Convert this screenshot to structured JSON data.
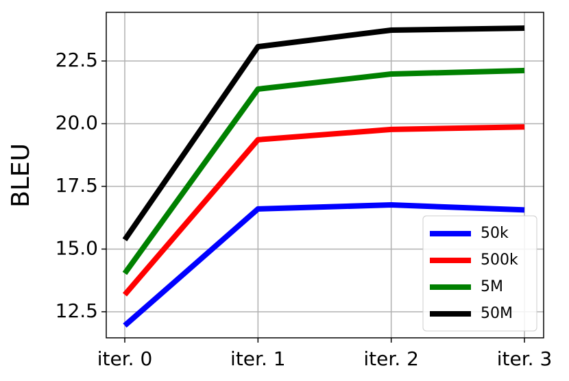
{
  "chart_data": {
    "type": "line",
    "y_label": "BLEU",
    "categories": [
      "iter. 0",
      "iter. 1",
      "iter. 2",
      "iter. 3"
    ],
    "series": [
      {
        "name": "50k",
        "color": "#0000ff",
        "values": [
          11.95,
          16.6,
          16.76,
          16.56
        ]
      },
      {
        "name": "500k",
        "color": "#ff0000",
        "values": [
          13.18,
          19.36,
          19.77,
          19.87
        ]
      },
      {
        "name": "5M",
        "color": "#008000",
        "values": [
          14.03,
          21.38,
          21.98,
          22.12
        ]
      },
      {
        "name": "50M",
        "color": "#000000",
        "values": [
          15.37,
          23.07,
          23.73,
          23.81
        ]
      }
    ],
    "ylim": [
      11.46,
      24.44
    ],
    "yticks": [
      12.5,
      {
        "value": 15,
        "label": "15.0"
      },
      17.5,
      {
        "value": 20,
        "label": "20.0"
      },
      22.5
    ],
    "grid": true,
    "legend": "lower right"
  }
}
